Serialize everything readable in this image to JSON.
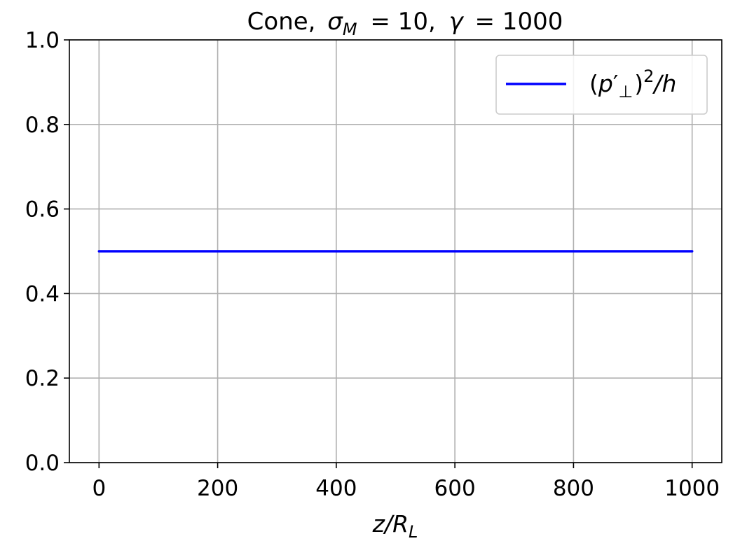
{
  "chart_data": {
    "type": "line",
    "title": {
      "prefix": "Cone,",
      "sigma_symbol": "σ",
      "sigma_subscript": "M",
      "sigma_value": "= 10,",
      "gamma_symbol": "γ",
      "gamma_value": "= 1000"
    },
    "xlabel": {
      "main": "z/R",
      "subscript": "L"
    },
    "ylabel": "",
    "xlim": [
      -50,
      1050
    ],
    "ylim": [
      0.0,
      1.0
    ],
    "xticks": [
      0,
      200,
      400,
      600,
      800,
      1000
    ],
    "yticks": [
      0.0,
      0.2,
      0.4,
      0.6,
      0.8,
      1.0
    ],
    "xtick_labels": [
      "0",
      "200",
      "400",
      "600",
      "800",
      "1000"
    ],
    "ytick_labels": [
      "0.0",
      "0.2",
      "0.4",
      "0.6",
      "0.8",
      "1.0"
    ],
    "grid": true,
    "legend_position": "top-right",
    "series": [
      {
        "name": "(p′⊥)²/h",
        "legend": {
          "open": "(",
          "p": "p",
          "prime": "′",
          "perp": "⊥",
          "close": ")",
          "sup": "2",
          "tail": "/h"
        },
        "color": "#0000ff",
        "x": [
          0,
          50,
          100,
          200,
          300,
          400,
          500,
          600,
          700,
          800,
          900,
          1000
        ],
        "y": [
          0.5,
          0.5,
          0.5,
          0.5,
          0.5,
          0.5,
          0.5,
          0.5,
          0.5,
          0.5,
          0.5,
          0.5
        ]
      }
    ]
  }
}
